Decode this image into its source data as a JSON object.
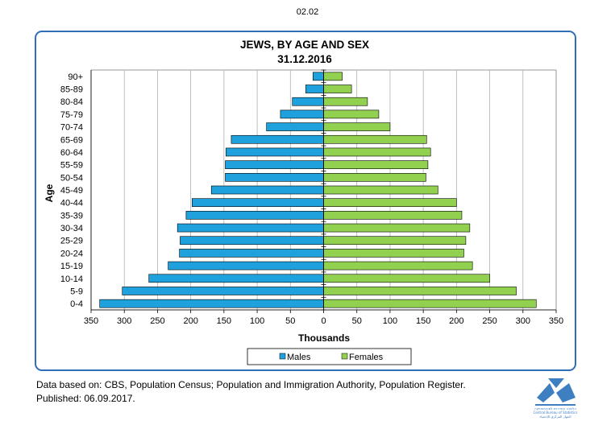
{
  "page_number": "02.02",
  "source": {
    "line1": "Data based on: CBS, Population Census; Population and Immigration Authority, Population Register.",
    "line2": "Published: 06.09.2017."
  },
  "logo": {
    "text1": "הלשכה המרכזית לסטטיסטיקה",
    "text2": "Central Bureau of Statistics",
    "text3": "الجهاز المركزي للإحصاء"
  },
  "chart_data": {
    "type": "bar",
    "orientation": "horizontal",
    "title": "JEWS, BY AGE AND SEX",
    "subtitle": "31.12.2016",
    "xlabel": "Thousands",
    "ylabel": "Age",
    "xlim": [
      -350,
      350
    ],
    "xticks": [
      -350,
      -300,
      -250,
      -200,
      -150,
      -100,
      -50,
      0,
      50,
      100,
      150,
      200,
      250,
      300,
      350
    ],
    "xtick_labels": [
      "350",
      "300",
      "250",
      "200",
      "150",
      "100",
      "50",
      "0",
      "50",
      "100",
      "150",
      "200",
      "250",
      "300",
      "350"
    ],
    "grid": "vertical",
    "legend": "bottom",
    "categories": [
      "0-4",
      "5-9",
      "10-14",
      "15-19",
      "20-24",
      "25-29",
      "30-34",
      "35-39",
      "40-44",
      "45-49",
      "50-54",
      "55-59",
      "60-64",
      "65-69",
      "70-74",
      "75-79",
      "80-84",
      "85-89",
      "90+"
    ],
    "series": [
      {
        "name": "Males",
        "color": "#1ea1dc",
        "values": [
          337,
          303,
          263,
          234,
          217,
          216,
          220,
          207,
          198,
          169,
          148,
          148,
          147,
          139,
          86,
          65,
          47,
          27,
          16
        ]
      },
      {
        "name": "Females",
        "color": "#92d050",
        "values": [
          320,
          290,
          250,
          224,
          211,
          214,
          220,
          208,
          200,
          172,
          154,
          157,
          161,
          155,
          100,
          83,
          66,
          42,
          28
        ]
      }
    ]
  }
}
